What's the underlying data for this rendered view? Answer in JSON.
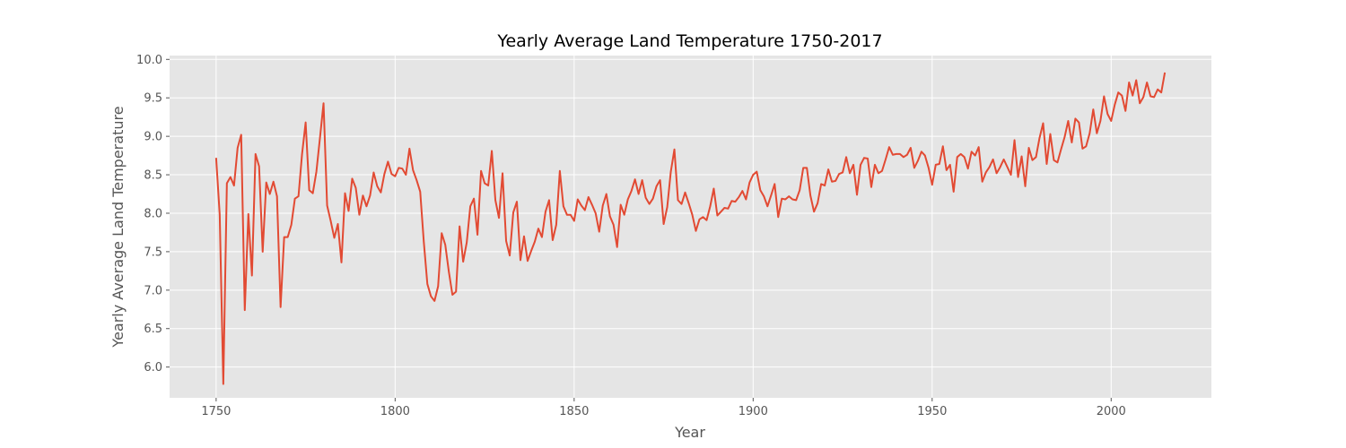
{
  "chart_data": {
    "type": "line",
    "title": "Yearly Average Land Temperature 1750-2017",
    "xlabel": "Year",
    "ylabel": "Yearly Average Land Temperature",
    "xlim": [
      1737,
      2028
    ],
    "ylim": [
      5.6,
      10.05
    ],
    "grid": true,
    "legend": "none",
    "line_color": "#E24A33",
    "background_color": "#E5E5E5",
    "x_ticks": [
      1750,
      1800,
      1850,
      1900,
      1950,
      2000
    ],
    "x_tick_labels": [
      "1750",
      "1800",
      "1850",
      "1900",
      "1950",
      "2000"
    ],
    "y_ticks": [
      6.0,
      6.5,
      7.0,
      7.5,
      8.0,
      8.5,
      9.0,
      9.5,
      10.0
    ],
    "y_tick_labels": [
      "6.0",
      "6.5",
      "7.0",
      "7.5",
      "8.0",
      "8.5",
      "9.0",
      "9.5",
      "10.0"
    ],
    "series": [
      {
        "x_start": 1750,
        "x_step": 1,
        "values": [
          8.72,
          7.98,
          5.78,
          8.39,
          8.47,
          8.36,
          8.85,
          9.02,
          6.74,
          7.99,
          7.19,
          8.77,
          8.61,
          7.5,
          8.4,
          8.25,
          8.41,
          8.22,
          6.78,
          7.69,
          7.69,
          7.85,
          8.19,
          8.22,
          8.77,
          9.18,
          8.3,
          8.26,
          8.54,
          8.98,
          9.43,
          8.1,
          7.9,
          7.68,
          7.86,
          7.36,
          8.26,
          8.03,
          8.45,
          8.33,
          7.98,
          8.23,
          8.09,
          8.23,
          8.53,
          8.35,
          8.27,
          8.51,
          8.67,
          8.51,
          8.48,
          8.59,
          8.58,
          8.5,
          8.84,
          8.56,
          8.43,
          8.28,
          7.63,
          7.08,
          6.92,
          6.86,
          7.05,
          7.74,
          7.59,
          7.24,
          6.94,
          6.98,
          7.83,
          7.37,
          7.62,
          8.09,
          8.19,
          7.72,
          8.55,
          8.39,
          8.36,
          8.81,
          8.17,
          7.94,
          8.52,
          7.64,
          7.45,
          8.01,
          8.15,
          7.39,
          7.7,
          7.38,
          7.51,
          7.63,
          7.8,
          7.69,
          8.02,
          8.17,
          7.65,
          7.85,
          8.55,
          8.09,
          7.98,
          7.98,
          7.9,
          8.18,
          8.1,
          8.04,
          8.21,
          8.11,
          8.0,
          7.76,
          8.1,
          8.25,
          7.96,
          7.85,
          7.56,
          8.11,
          7.98,
          8.18,
          8.29,
          8.44,
          8.25,
          8.43,
          8.2,
          8.12,
          8.19,
          8.35,
          8.43,
          7.86,
          8.08,
          8.54,
          8.83,
          8.17,
          8.12,
          8.27,
          8.13,
          7.98,
          7.77,
          7.92,
          7.95,
          7.91,
          8.09,
          8.32,
          7.97,
          8.02,
          8.07,
          8.06,
          8.16,
          8.15,
          8.21,
          8.29,
          8.18,
          8.4,
          8.5,
          8.54,
          8.3,
          8.22,
          8.09,
          8.23,
          8.38,
          7.95,
          8.19,
          8.18,
          8.22,
          8.18,
          8.17,
          8.3,
          8.59,
          8.59,
          8.23,
          8.02,
          8.13,
          8.38,
          8.36,
          8.57,
          8.41,
          8.42,
          8.51,
          8.53,
          8.73,
          8.52,
          8.63,
          8.24,
          8.63,
          8.72,
          8.71,
          8.34,
          8.63,
          8.52,
          8.55,
          8.7,
          8.86,
          8.76,
          8.77,
          8.77,
          8.73,
          8.76,
          8.85,
          8.59,
          8.68,
          8.8,
          8.75,
          8.59,
          8.37,
          8.63,
          8.64,
          8.87,
          8.56,
          8.63,
          8.28,
          8.73,
          8.77,
          8.73,
          8.58,
          8.8,
          8.75,
          8.86,
          8.41,
          8.53,
          8.6,
          8.7,
          8.52,
          8.6,
          8.7,
          8.6,
          8.5,
          8.95,
          8.47,
          8.74,
          8.35,
          8.85,
          8.69,
          8.73,
          8.98,
          9.17,
          8.64,
          9.03,
          8.69,
          8.66,
          8.83,
          8.99,
          9.2,
          8.92,
          9.23,
          9.18,
          8.84,
          8.87,
          9.04,
          9.35,
          9.04,
          9.2,
          9.52,
          9.29,
          9.2,
          9.41,
          9.57,
          9.53,
          9.33,
          9.7,
          9.53,
          9.73,
          9.43,
          9.51,
          9.7,
          9.52,
          9.51,
          9.61,
          9.57,
          9.83
        ]
      }
    ]
  }
}
